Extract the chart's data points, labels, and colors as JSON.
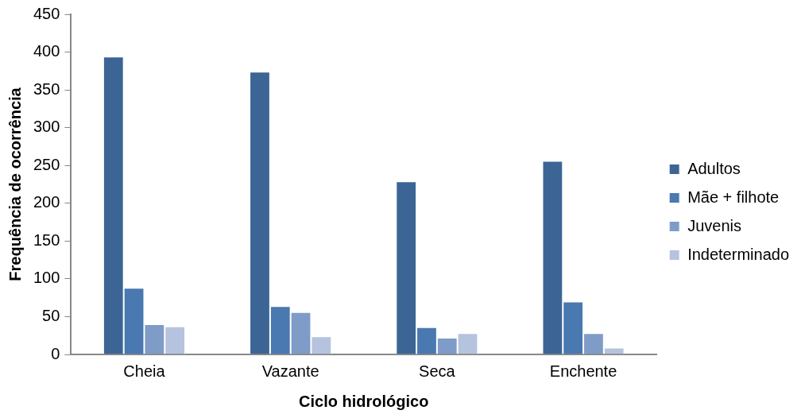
{
  "chart_data": {
    "type": "bar",
    "xlabel": "Ciclo hidrológico",
    "ylabel": "Frequência de ocorrência",
    "categories": [
      "Cheia",
      "Vazante",
      "Seca",
      "Enchente"
    ],
    "series": [
      {
        "name": "Adultos",
        "color": "#3c6595",
        "values": [
          394,
          374,
          229,
          256
        ]
      },
      {
        "name": "Mãe + filhote",
        "color": "#4a78b0",
        "values": [
          88,
          64,
          36,
          70
        ]
      },
      {
        "name": "Juvenis",
        "color": "#7f9cc8",
        "values": [
          40,
          56,
          22,
          28
        ]
      },
      {
        "name": "Indeterminado",
        "color": "#b5c3de",
        "values": [
          37,
          24,
          28,
          9
        ]
      }
    ],
    "ylim": [
      0,
      450
    ],
    "yticks": [
      0,
      50,
      100,
      150,
      200,
      250,
      300,
      350,
      400,
      450
    ],
    "grid": false,
    "legend": "right"
  }
}
